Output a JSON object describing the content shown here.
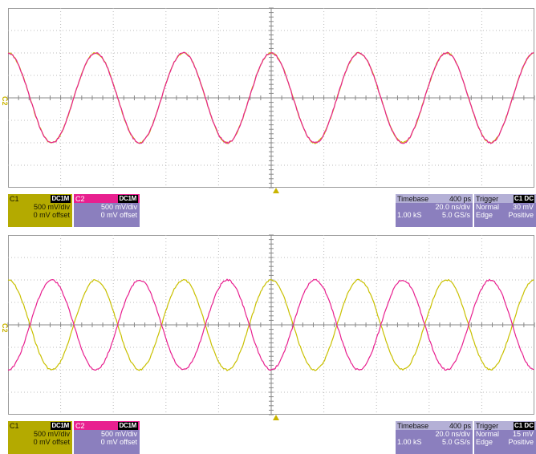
{
  "colors": {
    "ch1": "#c9c000",
    "ch2": "#e8208f",
    "grid": "#9a9a9a",
    "descriptor_bg": "#8b7fbe"
  },
  "panels": [
    {
      "id": "top",
      "ch2_marker": "C2",
      "c1": {
        "name": "C1",
        "coupling": "DC1M",
        "vdiv": "500 mV/div",
        "offset": "0 mV offset"
      },
      "c2": {
        "name": "C2",
        "coupling": "DC1M",
        "vdiv": "500 mV/div",
        "offset": "0 mV offset"
      },
      "timebase": {
        "label": "Timebase",
        "delay": "400 ps",
        "tdiv": "20.0 ns/div",
        "samples": "1.00 kS",
        "rate": "5.0 GS/s"
      },
      "trigger": {
        "label": "Trigger",
        "badge": "C1 DC",
        "mode": "Normal",
        "level": "30 mV",
        "type": "Edge",
        "slope": "Positive"
      },
      "waveform": {
        "cycles_visible": 6,
        "phase_offset_deg": 0,
        "amplitude_div": 2
      }
    },
    {
      "id": "bottom",
      "ch2_marker": "C2",
      "c1": {
        "name": "C1",
        "coupling": "DC1M",
        "vdiv": "500 mV/div",
        "offset": "0 mV offset"
      },
      "c2": {
        "name": "C2",
        "coupling": "DC1M",
        "vdiv": "500 mV/div",
        "offset": "0 mV offset"
      },
      "timebase": {
        "label": "Timebase",
        "delay": "400 ps",
        "tdiv": "20.0 ns/div",
        "samples": "1.00 kS",
        "rate": "5.0 GS/s"
      },
      "trigger": {
        "label": "Trigger",
        "badge": "C1 DC",
        "mode": "Normal",
        "level": "15 mV",
        "type": "Edge",
        "slope": "Positive"
      },
      "waveform": {
        "cycles_visible": 6,
        "phase_offset_deg": 180,
        "amplitude_div": 2
      }
    }
  ]
}
